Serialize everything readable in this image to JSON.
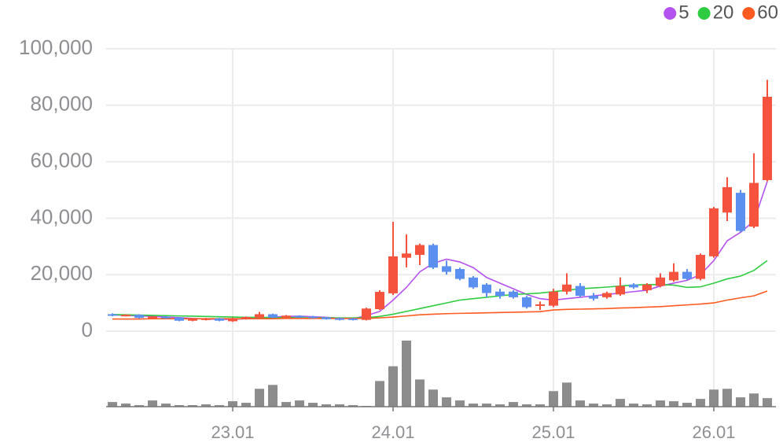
{
  "chart_data": {
    "type": "candlestick",
    "categories": [
      null,
      null,
      null,
      null,
      null,
      null,
      null,
      null,
      null,
      "23.01",
      null,
      null,
      null,
      null,
      null,
      null,
      null,
      null,
      null,
      null,
      null,
      "24.01",
      null,
      null,
      null,
      null,
      null,
      null,
      null,
      null,
      null,
      null,
      null,
      "25.01",
      null,
      null,
      null,
      null,
      null,
      null,
      null,
      null,
      null,
      null,
      null,
      "26.01",
      null,
      null,
      null,
      null
    ],
    "open": [
      6000,
      5400,
      5800,
      4500,
      5100,
      4800,
      3700,
      4000,
      4500,
      3500,
      4300,
      4800,
      6000,
      4800,
      5400,
      5200,
      4800,
      4600,
      4500,
      4000,
      7800,
      13400,
      26000,
      27000,
      30500,
      23000,
      22000,
      19000,
      16500,
      14000,
      14000,
      12000,
      9000,
      9000,
      14000,
      16000,
      12500,
      12000,
      13000,
      16500,
      14500,
      16000,
      18000,
      21000,
      18500,
      26500,
      42000,
      49000,
      37000,
      53500
    ],
    "high": [
      6300,
      6000,
      6000,
      5300,
      5300,
      4900,
      4500,
      4700,
      4700,
      4800,
      5200,
      6800,
      6200,
      5700,
      5600,
      5400,
      5000,
      4800,
      4700,
      8300,
      14500,
      38700,
      34300,
      31000,
      31000,
      25000,
      22500,
      19500,
      17000,
      15000,
      14500,
      12500,
      10500,
      15000,
      20500,
      17000,
      13500,
      14000,
      19000,
      17000,
      17000,
      20500,
      24000,
      22000,
      27500,
      44000,
      54500,
      50000,
      63000,
      89000
    ],
    "low": [
      5300,
      5200,
      4500,
      4300,
      4400,
      3500,
      3500,
      3800,
      3500,
      3300,
      4100,
      4600,
      4600,
      4600,
      4700,
      4500,
      4100,
      3800,
      3800,
      3800,
      7500,
      12800,
      22600,
      23400,
      22000,
      20000,
      18000,
      15000,
      12000,
      11500,
      11500,
      8000,
      7500,
      8500,
      13000,
      12000,
      10800,
      11500,
      12500,
      15000,
      13500,
      15500,
      17500,
      18000,
      18000,
      26000,
      39000,
      35000,
      36500,
      53000
    ],
    "close": [
      5500,
      5800,
      4700,
      5200,
      4600,
      3700,
      4300,
      4500,
      3700,
      4600,
      5000,
      6000,
      4800,
      5500,
      4900,
      4700,
      4300,
      4000,
      4000,
      8000,
      13900,
      26500,
      27500,
      30500,
      22500,
      21000,
      18500,
      15500,
      13500,
      12500,
      12000,
      8500,
      9500,
      14000,
      16500,
      12500,
      11500,
      13500,
      16000,
      15500,
      16500,
      19000,
      21000,
      18500,
      27000,
      43500,
      51000,
      35500,
      52500,
      83000
    ],
    "up_color": "#f5533d",
    "down_color": "#5b8ff0",
    "volume": {
      "color": "#8c8c8c",
      "values": [
        6,
        4,
        2,
        8,
        4,
        2,
        2,
        3,
        2,
        7,
        5,
        23,
        28,
        6,
        8,
        5,
        3,
        3,
        2,
        1,
        33,
        52,
        85,
        35,
        22,
        12,
        8,
        4,
        4,
        3,
        6,
        3,
        3,
        20,
        31,
        8,
        4,
        3,
        10,
        4,
        3,
        8,
        7,
        5,
        10,
        22,
        23,
        12,
        17,
        11
      ]
    },
    "series": [
      {
        "name": "5",
        "color": "#b452f0",
        "values": [
          5800,
          5600,
          5400,
          5200,
          5000,
          4800,
          4500,
          4300,
          4200,
          4200,
          4400,
          4700,
          5000,
          5200,
          5300,
          5100,
          4900,
          4600,
          4400,
          5500,
          7000,
          11000,
          15500,
          21000,
          24000,
          25500,
          24500,
          22500,
          19000,
          17000,
          15000,
          13000,
          11500,
          11000,
          11500,
          12000,
          12500,
          13000,
          13500,
          14000,
          14500,
          16000,
          17000,
          18000,
          20000,
          25000,
          32000,
          35000,
          39000,
          53000
        ]
      },
      {
        "name": "20",
        "color": "#2ecc40",
        "values": [
          5900,
          5800,
          5700,
          5600,
          5500,
          5400,
          5300,
          5200,
          5100,
          5000,
          4900,
          4900,
          4800,
          4800,
          4800,
          4700,
          4700,
          4700,
          4700,
          4800,
          5200,
          6000,
          7000,
          8000,
          9000,
          10000,
          11000,
          11500,
          12000,
          12500,
          13000,
          13200,
          13500,
          14000,
          14500,
          15000,
          15300,
          15600,
          16000,
          16300,
          16500,
          16500,
          16300,
          15500,
          15700,
          17000,
          18500,
          19500,
          21500,
          25000
        ]
      },
      {
        "name": "60",
        "color": "#ff5a1f",
        "values": [
          4300,
          4300,
          4300,
          4400,
          4400,
          4400,
          4400,
          4400,
          4400,
          4400,
          4400,
          4400,
          4400,
          4500,
          4500,
          4500,
          4500,
          4500,
          4500,
          4500,
          4700,
          5000,
          5400,
          5800,
          6000,
          6200,
          6300,
          6400,
          6500,
          6600,
          6700,
          6800,
          6900,
          7500,
          7700,
          7800,
          7900,
          8000,
          8200,
          8300,
          8500,
          8700,
          9000,
          9300,
          9600,
          10000,
          11000,
          11800,
          12500,
          14200
        ]
      }
    ],
    "ylim": [
      0,
      100000
    ],
    "yticks": [
      0,
      {
        "value": 20000,
        "label": "20,000"
      },
      {
        "value": 40000,
        "label": "40,000"
      },
      {
        "value": 60000,
        "label": "60,000"
      },
      {
        "value": 80000,
        "label": "80,000"
      },
      {
        "value": 100000,
        "label": "100,000"
      }
    ],
    "grid": true,
    "legend": "top-right"
  }
}
